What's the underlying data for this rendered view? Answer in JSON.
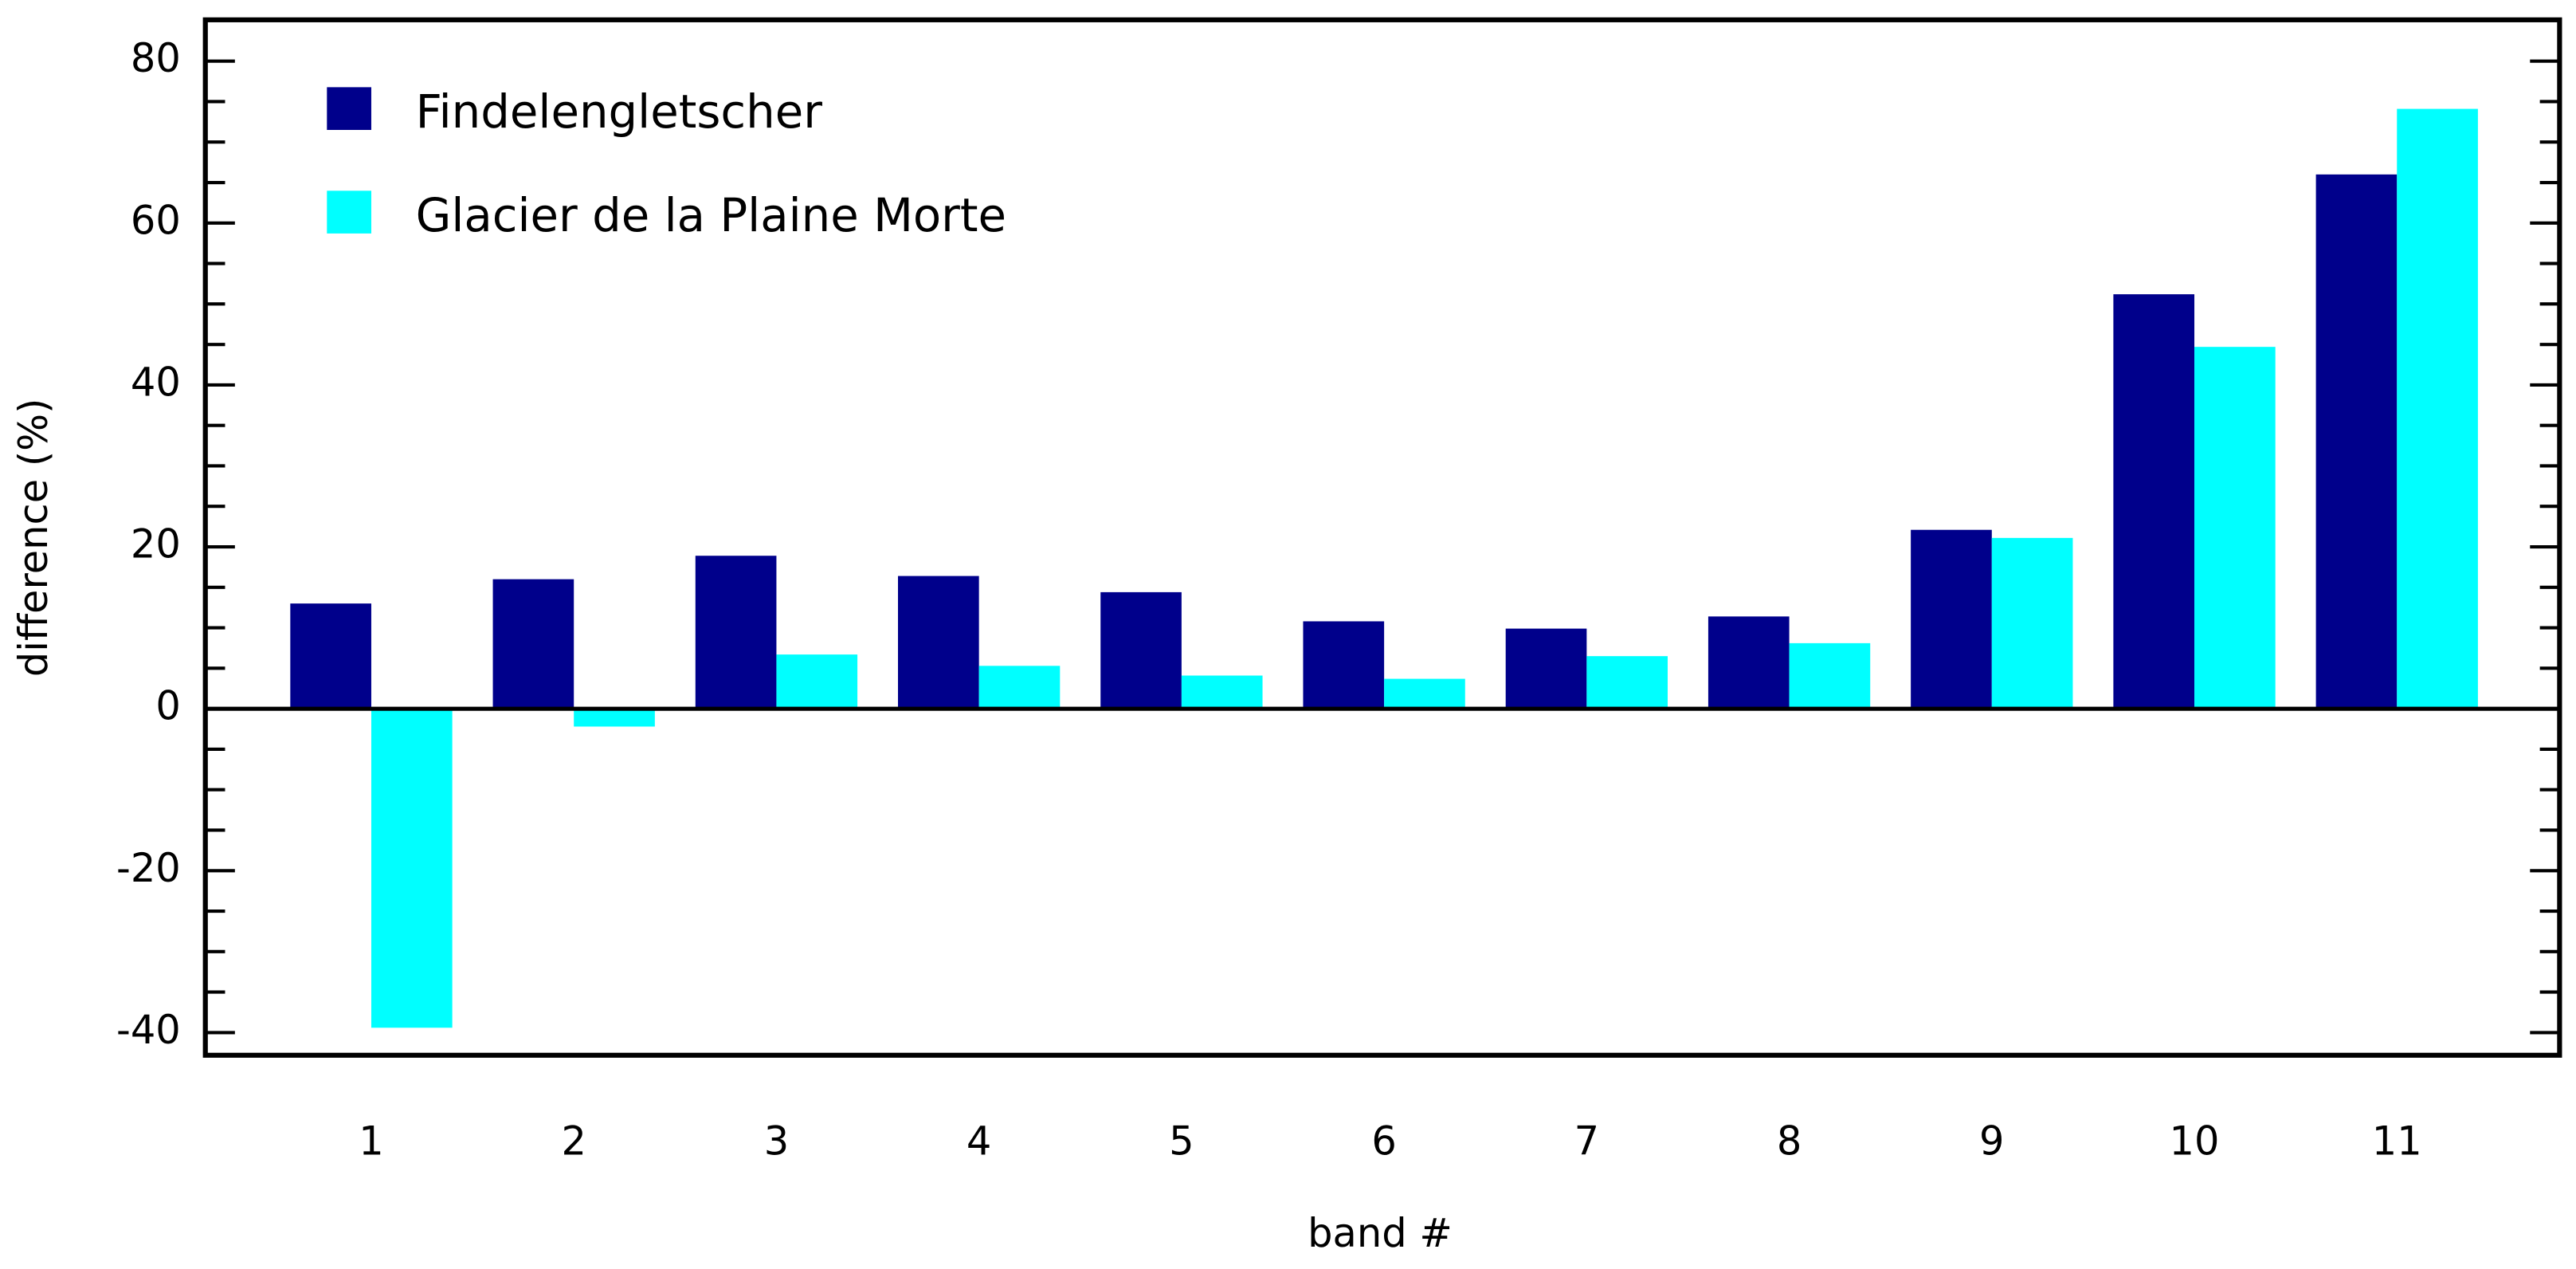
{
  "chart_data": {
    "type": "bar",
    "x_label": "band #",
    "y_label": "difference (%)",
    "categories": [
      "1",
      "2",
      "3",
      "4",
      "5",
      "6",
      "7",
      "8",
      "9",
      "10",
      "11"
    ],
    "series": [
      {
        "name": "Findelengletscher",
        "color": "#00008b",
        "values": [
          13.0,
          16.0,
          18.9,
          16.4,
          14.4,
          10.8,
          9.9,
          11.4,
          22.1,
          51.2,
          66.0
        ]
      },
      {
        "name": "Glacier de la Plaine Morte",
        "color": "#00ffff",
        "values": [
          -39.4,
          -2.2,
          6.7,
          5.3,
          4.1,
          3.7,
          6.5,
          8.1,
          21.1,
          44.7,
          74.1
        ]
      }
    ],
    "ylim": [
      -42.8,
      85.1
    ],
    "yticks": [
      -40,
      -20,
      0,
      20,
      40,
      60,
      80
    ],
    "yminorticks": [
      -35,
      -30,
      -25,
      -15,
      -10,
      -5,
      5,
      10,
      15,
      25,
      30,
      35,
      45,
      50,
      55,
      65,
      70,
      75
    ],
    "zero_line": true,
    "legend": "upper left"
  }
}
